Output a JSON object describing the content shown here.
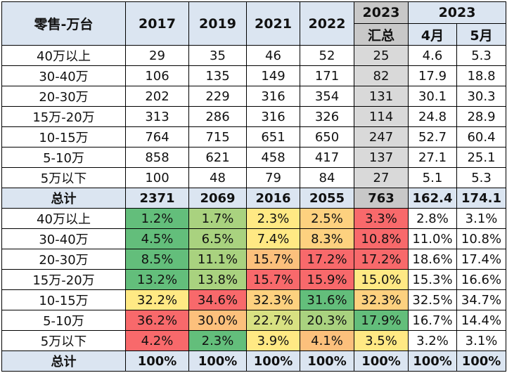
{
  "header": {
    "corner": "零售-万台",
    "years": [
      "2017",
      "2019",
      "2021",
      "2022"
    ],
    "y2023": "2023",
    "sum": "汇总",
    "y2023b": "2023",
    "apr": "4月",
    "may": "5月"
  },
  "volume_rows": [
    {
      "label": "40万以上",
      "vals": [
        "29",
        "35",
        "46",
        "52",
        "25",
        "4.6",
        "5.3"
      ]
    },
    {
      "label": "30-40万",
      "vals": [
        "106",
        "135",
        "149",
        "171",
        "82",
        "17.9",
        "18.8"
      ]
    },
    {
      "label": "20-30万",
      "vals": [
        "202",
        "229",
        "316",
        "354",
        "131",
        "30.1",
        "30.3"
      ]
    },
    {
      "label": "15万-20万",
      "vals": [
        "313",
        "286",
        "316",
        "326",
        "114",
        "24.8",
        "28.9"
      ]
    },
    {
      "label": "10-15万",
      "vals": [
        "764",
        "715",
        "651",
        "650",
        "247",
        "52.7",
        "60.4"
      ]
    },
    {
      "label": "5-10万",
      "vals": [
        "858",
        "621",
        "458",
        "417",
        "137",
        "27.1",
        "25.1"
      ]
    },
    {
      "label": "5万以下",
      "vals": [
        "100",
        "48",
        "79",
        "84",
        "27",
        "5.1",
        "5.3"
      ]
    }
  ],
  "volume_total": {
    "label": "总计",
    "vals": [
      "2371",
      "2069",
      "2016",
      "2055",
      "763",
      "162.4",
      "174.1"
    ]
  },
  "share_rows": [
    {
      "label": "40万以上",
      "vals": [
        "1.2%",
        "1.7%",
        "2.3%",
        "2.5%",
        "3.3%",
        "2.8%",
        "3.1%"
      ],
      "colors": [
        "#63be7b",
        "#a9d27f",
        "#ffe984",
        "#fdd17f",
        "#f8696b",
        "",
        ""
      ]
    },
    {
      "label": "30-40万",
      "vals": [
        "4.5%",
        "6.5%",
        "7.4%",
        "8.3%",
        "10.8%",
        "11.0%",
        "10.8%"
      ],
      "colors": [
        "#63be7b",
        "#a9d27f",
        "#ffe984",
        "#fdd17f",
        "#f8696b",
        "",
        ""
      ]
    },
    {
      "label": "20-30万",
      "vals": [
        "8.5%",
        "11.1%",
        "15.7%",
        "17.2%",
        "17.2%",
        "18.6%",
        "17.4%"
      ],
      "colors": [
        "#63be7b",
        "#a9d27f",
        "#fcc07c",
        "#f8696b",
        "#f8696b",
        "",
        ""
      ]
    },
    {
      "label": "15万-20万",
      "vals": [
        "13.2%",
        "13.8%",
        "15.7%",
        "15.9%",
        "15.0%",
        "15.3%",
        "16.6%"
      ],
      "colors": [
        "#63be7b",
        "#a9d27f",
        "#f8696b",
        "#f8696b",
        "#ffe984",
        "",
        ""
      ]
    },
    {
      "label": "10-15万",
      "vals": [
        "32.2%",
        "34.6%",
        "32.3%",
        "31.6%",
        "32.3%",
        "32.5%",
        "34.7%"
      ],
      "colors": [
        "#ffe984",
        "#f8696b",
        "#fdd17f",
        "#63be7b",
        "#fdd17f",
        "",
        ""
      ]
    },
    {
      "label": "5-10万",
      "vals": [
        "36.2%",
        "30.0%",
        "22.7%",
        "20.3%",
        "17.9%",
        "16.7%",
        "14.4%"
      ],
      "colors": [
        "#f8696b",
        "#fcc07c",
        "#d8e182",
        "#a9d27f",
        "#63be7b",
        "",
        ""
      ]
    },
    {
      "label": "5万以下",
      "vals": [
        "4.2%",
        "2.3%",
        "3.9%",
        "4.1%",
        "3.5%",
        "3.2%",
        "3.1%"
      ],
      "colors": [
        "#f8696b",
        "#63be7b",
        "#ffe984",
        "#fcc07c",
        "#ffe984",
        "",
        ""
      ]
    }
  ],
  "share_total": {
    "label": "总计",
    "vals": [
      "100%",
      "100%",
      "100%",
      "100%",
      "100%",
      "100%",
      "100%"
    ]
  }
}
